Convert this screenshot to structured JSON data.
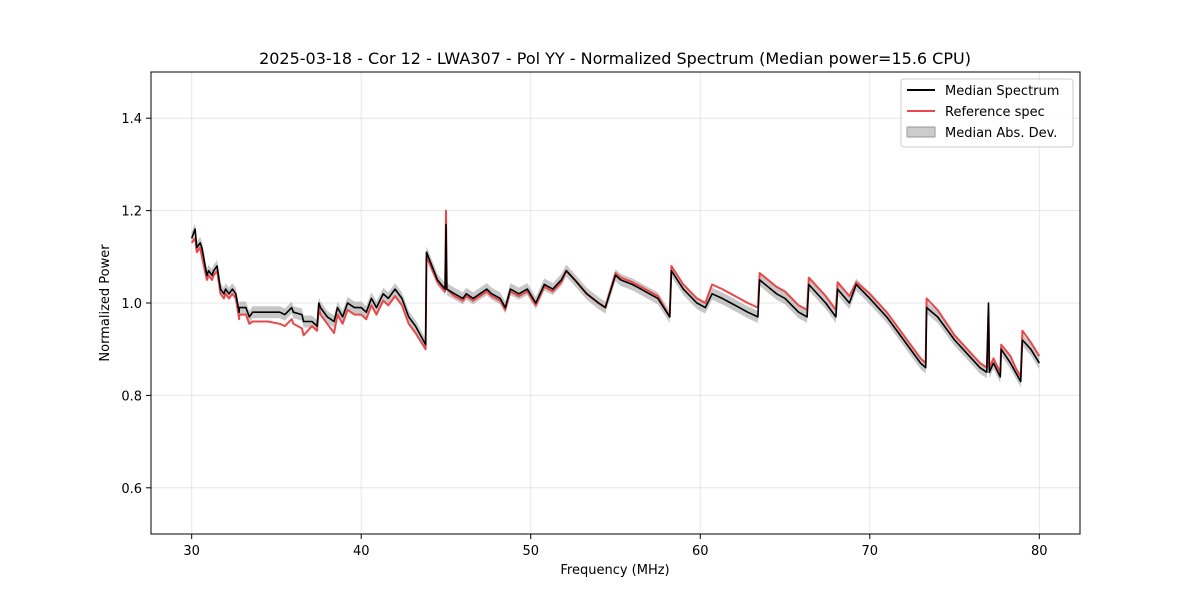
{
  "chart_data": {
    "type": "line",
    "title": "2025-03-18 - Cor 12 - LWA307 - Pol YY - Normalized Spectrum (Median power=15.6 CPU)",
    "xlabel": "Frequency (MHz)",
    "ylabel": "Normalized Power",
    "xlim": [
      27.6,
      82.4
    ],
    "ylim": [
      0.5,
      1.5
    ],
    "xticks": [
      30,
      40,
      50,
      60,
      70,
      80
    ],
    "yticks": [
      0.6,
      0.8,
      1.0,
      1.2,
      1.4
    ],
    "xtick_labels": [
      "30",
      "40",
      "50",
      "60",
      "70",
      "80"
    ],
    "ytick_labels": [
      "0.6",
      "0.8",
      "1.0",
      "1.2",
      "1.4"
    ],
    "grid": true,
    "legend_position": "top-right",
    "legend": [
      "Median Spectrum",
      "Reference spec",
      "Median Abs. Dev."
    ],
    "colors": {
      "median": "#000000",
      "reference": "#e8484a",
      "mad": "#999999"
    },
    "mad_width": 0.013,
    "median_spectrum": {
      "x": [
        30.0,
        30.2,
        30.3,
        30.5,
        30.6,
        30.9,
        31.0,
        31.2,
        31.3,
        31.5,
        31.7,
        31.9,
        32.0,
        32.2,
        32.4,
        32.6,
        32.8,
        32.8,
        33.2,
        33.4,
        33.6,
        34.5,
        35.2,
        35.5,
        35.9,
        36.0,
        36.5,
        36.6,
        37.1,
        37.4,
        37.5,
        37.6,
        38.0,
        38.4,
        38.6,
        38.9,
        39.2,
        39.6,
        40.0,
        40.3,
        40.6,
        40.9,
        41.3,
        41.6,
        42.0,
        42.4,
        42.8,
        43.2,
        43.8,
        43.85,
        44.5,
        44.95,
        45.0,
        45.05,
        45.5,
        46.0,
        46.2,
        46.6,
        47.0,
        47.4,
        47.7,
        48.2,
        48.5,
        48.8,
        49.3,
        49.8,
        50.3,
        50.8,
        51.3,
        51.8,
        52.1,
        52.6,
        53.3,
        54.0,
        54.4,
        55.0,
        55.3,
        56.0,
        56.5,
        57.0,
        57.5,
        58.2,
        58.3,
        59.0,
        59.8,
        60.3,
        60.7,
        61.3,
        61.8,
        62.3,
        62.8,
        63.4,
        63.5,
        64.5,
        65.0,
        65.8,
        66.3,
        66.4,
        67.4,
        68.0,
        68.1,
        68.8,
        69.2,
        70.0,
        71.0,
        72.0,
        73.0,
        73.3,
        73.35,
        74.0,
        75.0,
        76.0,
        76.5,
        76.9,
        77.0,
        77.05,
        77.3,
        77.7,
        77.75,
        78.3,
        78.6,
        78.9,
        79.0,
        79.5,
        80.0
      ],
      "y": [
        1.14,
        1.16,
        1.12,
        1.13,
        1.12,
        1.06,
        1.07,
        1.06,
        1.07,
        1.08,
        1.03,
        1.02,
        1.03,
        1.02,
        1.03,
        1.02,
        0.98,
        0.99,
        0.99,
        0.97,
        0.98,
        0.98,
        0.98,
        0.975,
        0.99,
        0.98,
        0.975,
        0.96,
        0.96,
        0.95,
        1.0,
        0.99,
        0.97,
        0.96,
        0.99,
        0.97,
        1.0,
        0.99,
        0.99,
        0.98,
        1.01,
        0.99,
        1.02,
        1.01,
        1.03,
        1.01,
        0.97,
        0.95,
        0.91,
        1.11,
        1.05,
        1.03,
        1.17,
        1.03,
        1.02,
        1.01,
        1.02,
        1.01,
        1.02,
        1.03,
        1.02,
        1.01,
        0.99,
        1.03,
        1.02,
        1.03,
        1.0,
        1.04,
        1.03,
        1.05,
        1.07,
        1.05,
        1.02,
        1.0,
        0.99,
        1.06,
        1.05,
        1.04,
        1.03,
        1.02,
        1.01,
        0.97,
        1.07,
        1.03,
        1.0,
        0.99,
        1.02,
        1.01,
        1.0,
        0.99,
        0.98,
        0.97,
        1.05,
        1.02,
        1.01,
        0.98,
        0.97,
        1.04,
        1.0,
        0.97,
        1.03,
        1.0,
        1.04,
        1.01,
        0.97,
        0.92,
        0.87,
        0.86,
        0.99,
        0.97,
        0.92,
        0.88,
        0.86,
        0.85,
        1.0,
        0.85,
        0.87,
        0.84,
        0.9,
        0.87,
        0.85,
        0.83,
        0.92,
        0.9,
        0.87
      ]
    },
    "reference_spec": {
      "x": [
        30.0,
        30.2,
        30.3,
        30.5,
        30.6,
        30.9,
        31.0,
        31.2,
        31.3,
        31.5,
        31.7,
        31.9,
        32.0,
        32.2,
        32.4,
        32.6,
        32.8,
        32.8,
        33.2,
        33.4,
        33.6,
        34.5,
        35.2,
        35.5,
        35.9,
        36.0,
        36.5,
        36.6,
        37.1,
        37.4,
        37.5,
        37.6,
        38.0,
        38.4,
        38.6,
        38.9,
        39.2,
        39.6,
        40.0,
        40.3,
        40.6,
        40.9,
        41.3,
        41.6,
        42.0,
        42.4,
        42.8,
        43.2,
        43.8,
        43.85,
        44.5,
        44.95,
        45.0,
        45.05,
        45.5,
        46.0,
        46.2,
        46.6,
        47.0,
        47.4,
        47.7,
        48.2,
        48.5,
        48.8,
        49.3,
        49.8,
        50.3,
        50.8,
        51.3,
        51.8,
        52.1,
        52.6,
        53.3,
        54.0,
        54.4,
        55.0,
        55.3,
        56.0,
        56.5,
        57.0,
        57.5,
        58.2,
        58.3,
        59.0,
        59.8,
        60.3,
        60.7,
        61.3,
        61.8,
        62.3,
        62.8,
        63.4,
        63.5,
        64.5,
        65.0,
        65.8,
        66.3,
        66.4,
        67.4,
        68.0,
        68.1,
        68.8,
        69.2,
        70.0,
        71.0,
        72.0,
        73.0,
        73.3,
        73.35,
        74.0,
        75.0,
        76.0,
        76.5,
        76.9,
        77.0,
        77.05,
        77.3,
        77.7,
        77.75,
        78.3,
        78.6,
        78.9,
        79.0,
        79.5,
        80.0
      ],
      "y": [
        1.13,
        1.14,
        1.11,
        1.12,
        1.1,
        1.05,
        1.06,
        1.05,
        1.06,
        1.07,
        1.02,
        1.01,
        1.02,
        1.01,
        1.02,
        1.01,
        0.965,
        0.975,
        0.975,
        0.955,
        0.96,
        0.96,
        0.955,
        0.95,
        0.965,
        0.955,
        0.945,
        0.93,
        0.95,
        0.94,
        0.99,
        0.975,
        0.955,
        0.935,
        0.975,
        0.955,
        0.985,
        0.975,
        0.975,
        0.965,
        0.995,
        0.975,
        1.005,
        0.995,
        1.015,
        0.995,
        0.955,
        0.935,
        0.9,
        1.1,
        1.045,
        1.025,
        1.2,
        1.03,
        1.015,
        1.005,
        1.015,
        1.005,
        1.015,
        1.025,
        1.015,
        1.005,
        0.985,
        1.025,
        1.015,
        1.025,
        0.995,
        1.035,
        1.025,
        1.045,
        1.07,
        1.05,
        1.02,
        1.0,
        0.99,
        1.065,
        1.055,
        1.045,
        1.035,
        1.025,
        1.015,
        0.97,
        1.08,
        1.04,
        1.01,
        1.0,
        1.04,
        1.03,
        1.02,
        1.01,
        1.0,
        0.99,
        1.065,
        1.035,
        1.025,
        0.995,
        0.985,
        1.055,
        1.015,
        0.985,
        1.045,
        1.015,
        1.045,
        1.02,
        0.98,
        0.93,
        0.88,
        0.87,
        1.01,
        0.985,
        0.93,
        0.89,
        0.87,
        0.86,
        0.98,
        0.86,
        0.88,
        0.85,
        0.91,
        0.885,
        0.86,
        0.84,
        0.94,
        0.915,
        0.885
      ]
    }
  }
}
